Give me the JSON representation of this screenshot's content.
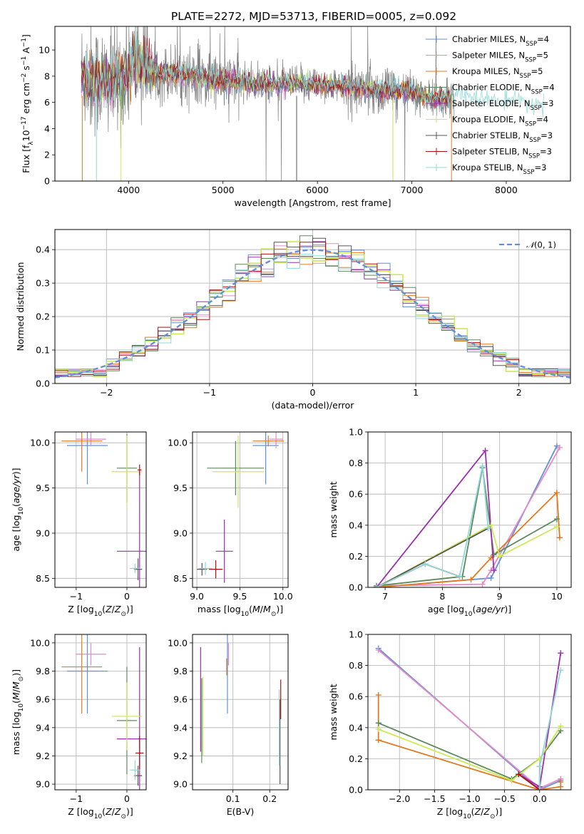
{
  "title": "PLATE=2272, MJD=53713, FIBERID=0005, z=0.092",
  "colors": {
    "Chabrier MILES": "#6190d8",
    "Salpeter MILES": "#e58ac6",
    "Kroupa MILES": "#e07a1f",
    "Chabrier ELODIE": "#5c8a5c",
    "Salpeter ELODIE": "#9a2fb0",
    "Kroupa ELODIE": "#cbe85a",
    "Chabrier STELIB": "#555555",
    "Salpeter STELIB": "#b01010",
    "Kroupa STELIB": "#8fd8d8",
    "data": "#7f7f7f"
  },
  "chart_data": [
    {
      "id": "spectrum",
      "type": "line",
      "xlabel": "wavelength [Angstrom, rest frame]",
      "ylabel": "Flux [f_λ 10^-17 erg cm^-2 s^-1 A^-1]",
      "xlim": [
        3220,
        8680
      ],
      "ylim": [
        0,
        11.8
      ],
      "xticks": [
        4000,
        5000,
        6000,
        7000,
        8000
      ],
      "yticks": [
        0,
        2,
        4,
        6,
        8,
        10
      ],
      "legend_position": "top-right",
      "legend": [
        {
          "model": "Chabrier MILES",
          "label": "Chabrier MILES, N",
          "sub": "SSP",
          "suffix": "=4"
        },
        {
          "model": "Salpeter MILES",
          "label": "Salpeter MILES, N",
          "sub": "SSP",
          "suffix": "=5"
        },
        {
          "model": "Kroupa MILES",
          "label": "Kroupa MILES, N",
          "sub": "SSP",
          "suffix": "=5"
        },
        {
          "model": "Chabrier ELODIE",
          "label": "Chabrier ELODIE, N",
          "sub": "SSP",
          "suffix": "=4"
        },
        {
          "model": "Salpeter ELODIE",
          "label": "Salpeter ELODIE, N",
          "sub": "SSP",
          "suffix": "=3"
        },
        {
          "model": "Kroupa ELODIE",
          "label": "Kroupa ELODIE, N",
          "sub": "SSP",
          "suffix": "=4"
        },
        {
          "model": "Chabrier STELIB",
          "label": "Chabrier STELIB, N",
          "sub": "SSP",
          "suffix": "=3"
        },
        {
          "model": "Salpeter STELIB",
          "label": "Salpeter STELIB, N",
          "sub": "SSP",
          "suffix": "=3"
        },
        {
          "model": "Kroupa STELIB",
          "label": "Kroupa STELIB, N",
          "sub": "SSP",
          "suffix": "=3"
        }
      ],
      "continuum_knots": [
        [
          3500,
          8.2
        ],
        [
          3700,
          7.6
        ],
        [
          3900,
          7.7
        ],
        [
          4100,
          9.2
        ],
        [
          4300,
          8.3
        ],
        [
          4600,
          8.1
        ],
        [
          5000,
          7.6
        ],
        [
          5500,
          7.4
        ],
        [
          6000,
          7.4
        ],
        [
          6500,
          7.0
        ],
        [
          7000,
          6.8
        ],
        [
          7200,
          6.2
        ],
        [
          7400,
          6.4
        ],
        [
          7600,
          6.2
        ],
        [
          8000,
          5.9
        ],
        [
          8400,
          5.6
        ]
      ]
    },
    {
      "id": "residuals",
      "type": "histogram",
      "xlabel": "(data-model)/error",
      "ylabel": "Normed distribution",
      "xlim": [
        -2.5,
        2.5
      ],
      "ylim": [
        0,
        0.46
      ],
      "xticks": [
        -2,
        -1,
        0,
        1,
        2
      ],
      "yticks": [
        0.0,
        0.1,
        0.2,
        0.3,
        0.4
      ],
      "grid": true,
      "legend_position": "top-right",
      "reference_label": "N(0,1)",
      "bins": 40
    },
    {
      "id": "z-age",
      "type": "errorbar",
      "xlabel": "Z [log10(Z/Z⊙)]",
      "ylabel": "age [log10(age/yr)]",
      "xlim": [
        -1.42,
        0.38
      ],
      "ylim": [
        8.4,
        10.12
      ],
      "xticks": [
        -1,
        0
      ],
      "yticks": [
        8.5,
        9.0,
        9.5,
        10.0
      ],
      "grid": true,
      "points": [
        {
          "model": "Chabrier MILES",
          "x": -0.78,
          "y": 9.97,
          "xerr": 0.4,
          "yerr": 0.43
        },
        {
          "model": "Salpeter MILES",
          "x": -0.71,
          "y": 10.04,
          "xerr": 0.3,
          "yerr": 0.08
        },
        {
          "model": "Kroupa MILES",
          "x": -0.89,
          "y": 10.02,
          "xerr": 0.4,
          "yerr": 0.34
        },
        {
          "model": "Chabrier ELODIE",
          "x": -0.0,
          "y": 9.72,
          "xerr": 0.2,
          "yerr": 0.38
        },
        {
          "model": "Salpeter ELODIE",
          "x": 0.25,
          "y": 8.8,
          "xerr": 0.45,
          "yerr": 0.9
        },
        {
          "model": "Kroupa ELODIE",
          "x": 0.0,
          "y": 9.68,
          "xerr": 0.3,
          "yerr": 0.4
        },
        {
          "model": "Chabrier STELIB",
          "x": 0.22,
          "y": 8.6,
          "xerr": 0.08,
          "yerr": 0.12
        },
        {
          "model": "Salpeter STELIB",
          "x": 0.25,
          "y": 9.7,
          "xerr": 0.04,
          "yerr": 0.06
        },
        {
          "model": "Kroupa STELIB",
          "x": 0.16,
          "y": 8.61,
          "xerr": 0.1,
          "yerr": 0.05
        }
      ]
    },
    {
      "id": "mass-age",
      "type": "errorbar",
      "xlabel": "mass [log10(M/M⊙)]",
      "ylabel": "",
      "xlim": [
        8.95,
        10.06
      ],
      "ylim": [
        8.4,
        10.12
      ],
      "xticks": [
        9.0,
        9.5,
        10.0
      ],
      "yticks": [
        8.5,
        9.0,
        9.5,
        10.0
      ],
      "grid": true,
      "points": [
        {
          "model": "Chabrier MILES",
          "x": 9.8,
          "y": 9.97,
          "xerr": 0.15,
          "yerr": 0.43
        },
        {
          "model": "Salpeter MILES",
          "x": 9.92,
          "y": 10.04,
          "xerr": 0.08,
          "yerr": 0.1
        },
        {
          "model": "Kroupa MILES",
          "x": 9.83,
          "y": 10.02,
          "xerr": 0.18,
          "yerr": 0.06
        },
        {
          "model": "Chabrier ELODIE",
          "x": 9.45,
          "y": 9.72,
          "xerr": 0.33,
          "yerr": 0.3
        },
        {
          "model": "Salpeter ELODIE",
          "x": 9.32,
          "y": 8.8,
          "xerr": 0.1,
          "yerr": 0.35
        },
        {
          "model": "Kroupa ELODIE",
          "x": 9.48,
          "y": 9.68,
          "xerr": 0.3,
          "yerr": 0.4
        },
        {
          "model": "Chabrier STELIB",
          "x": 9.06,
          "y": 8.6,
          "xerr": 0.06,
          "yerr": 0.07
        },
        {
          "model": "Salpeter STELIB",
          "x": 9.22,
          "y": 8.6,
          "xerr": 0.08,
          "yerr": 0.1
        },
        {
          "model": "Kroupa STELIB",
          "x": 9.1,
          "y": 8.61,
          "xerr": 0.08,
          "yerr": 0.07
        }
      ]
    },
    {
      "id": "age-weight",
      "type": "line",
      "xlabel": "age [log10(age/yr)]",
      "ylabel": "mass weight",
      "xlim": [
        6.7,
        10.25
      ],
      "ylim": [
        0,
        1.0
      ],
      "xticks": [
        7,
        8,
        9,
        10
      ],
      "yticks": [
        0.0,
        0.2,
        0.4,
        0.6,
        0.8,
        1.0
      ],
      "grid": true,
      "series": [
        {
          "model": "Chabrier MILES",
          "x": [
            6.85,
            8.85,
            10.0
          ],
          "y": [
            0.0,
            0.06,
            0.91
          ]
        },
        {
          "model": "Salpeter MILES",
          "x": [
            6.85,
            8.7,
            8.85,
            10.05
          ],
          "y": [
            0.01,
            0.02,
            0.11,
            0.9
          ]
        },
        {
          "model": "Kroupa MILES",
          "x": [
            6.85,
            8.5,
            8.85,
            10.0,
            10.05
          ],
          "y": [
            0.0,
            0.05,
            0.19,
            0.61,
            0.32
          ]
        },
        {
          "model": "Chabrier ELODIE",
          "x": [
            6.85,
            8.35,
            8.7,
            8.9,
            10.0
          ],
          "y": [
            0.01,
            0.07,
            0.77,
            0.21,
            0.44
          ]
        },
        {
          "model": "Salpeter ELODIE",
          "x": [
            6.85,
            8.75,
            8.9
          ],
          "y": [
            0.0,
            0.88,
            0.11
          ]
        },
        {
          "model": "Kroupa ELODIE",
          "x": [
            6.85,
            8.85,
            9.0,
            10.0
          ],
          "y": [
            0.0,
            0.4,
            0.2,
            0.39
          ]
        },
        {
          "model": "Chabrier STELIB",
          "x": [
            6.85,
            8.8
          ],
          "y": [
            0.0,
            0.38
          ]
        },
        {
          "model": "Salpeter STELIB",
          "x": [
            6.85,
            7.7,
            8.3
          ],
          "y": [
            0.0,
            0.15,
            0.07
          ]
        },
        {
          "model": "Kroupa STELIB",
          "x": [
            6.85,
            7.7,
            8.3,
            8.7,
            8.8
          ],
          "y": [
            0.0,
            0.15,
            0.07,
            0.78,
            0.38
          ]
        }
      ]
    },
    {
      "id": "z-mass",
      "type": "errorbar",
      "xlabel": "Z [log10(Z/Z⊙)]",
      "ylabel": "mass [log10(M/M⊙)]",
      "xlim": [
        -1.42,
        0.38
      ],
      "ylim": [
        8.96,
        10.06
      ],
      "xticks": [
        -1,
        0
      ],
      "yticks": [
        9.0,
        9.2,
        9.4,
        9.6,
        9.8,
        10.0
      ],
      "grid": true,
      "points": [
        {
          "model": "Chabrier MILES",
          "x": -0.78,
          "y": 9.8,
          "xerr": 0.4,
          "yerr": 0.3
        },
        {
          "model": "Salpeter MILES",
          "x": -0.71,
          "y": 9.92,
          "xerr": 0.3,
          "yerr": 0.08
        },
        {
          "model": "Kroupa MILES",
          "x": -0.89,
          "y": 9.83,
          "xerr": 0.4,
          "yerr": 0.33
        },
        {
          "model": "Chabrier ELODIE",
          "x": -0.0,
          "y": 9.45,
          "xerr": 0.2,
          "yerr": 0.38
        },
        {
          "model": "Salpeter ELODIE",
          "x": 0.25,
          "y": 9.32,
          "xerr": 0.45,
          "yerr": 0.65
        },
        {
          "model": "Kroupa ELODIE",
          "x": 0.0,
          "y": 9.48,
          "xerr": 0.3,
          "yerr": 0.24
        },
        {
          "model": "Chabrier STELIB",
          "x": 0.22,
          "y": 9.06,
          "xerr": 0.08,
          "yerr": 0.07
        },
        {
          "model": "Salpeter STELIB",
          "x": 0.25,
          "y": 9.22,
          "xerr": 0.08,
          "yerr": 0.12
        },
        {
          "model": "Kroupa STELIB",
          "x": 0.16,
          "y": 9.1,
          "xerr": 0.1,
          "yerr": 0.07
        }
      ]
    },
    {
      "id": "ebv-mass",
      "type": "errorbar",
      "xlabel": "E(B-V)",
      "ylabel": "",
      "xlim": [
        -0.01,
        0.25
      ],
      "ylim": [
        8.96,
        10.06
      ],
      "xticks": [
        0.1,
        0.2
      ],
      "yticks": [
        9.0,
        9.2,
        9.4,
        9.6,
        9.8,
        10.0
      ],
      "grid": true,
      "points": [
        {
          "model": "Chabrier MILES",
          "x": 0.085,
          "y": 9.8,
          "xerr": 0.0,
          "yerr": 0.3
        },
        {
          "model": "Salpeter MILES",
          "x": 0.088,
          "y": 9.92,
          "xerr": 0.0,
          "yerr": 0.08
        },
        {
          "model": "Kroupa MILES",
          "x": 0.083,
          "y": 9.83,
          "xerr": 0.0,
          "yerr": 0.06
        },
        {
          "model": "Chabrier ELODIE",
          "x": 0.015,
          "y": 9.45,
          "xerr": 0.0,
          "yerr": 0.3
        },
        {
          "model": "Salpeter ELODIE",
          "x": 0.012,
          "y": 9.6,
          "xerr": 0.0,
          "yerr": 0.37
        },
        {
          "model": "Kroupa ELODIE",
          "x": 0.018,
          "y": 9.48,
          "xerr": 0.0,
          "yerr": 0.28
        },
        {
          "model": "Chabrier STELIB",
          "x": 0.228,
          "y": 9.3,
          "xerr": 0.0,
          "yerr": 0.3
        },
        {
          "model": "Salpeter STELIB",
          "x": 0.23,
          "y": 9.6,
          "xerr": 0.0,
          "yerr": 0.14
        },
        {
          "model": "Kroupa STELIB",
          "x": 0.226,
          "y": 9.4,
          "xerr": 0.0,
          "yerr": 0.27
        }
      ]
    },
    {
      "id": "z-weight",
      "type": "line",
      "xlabel": "Z [log10(Z/Z⊙)]",
      "ylabel": "mass weight",
      "xlim": [
        -2.45,
        0.45
      ],
      "ylim": [
        0,
        1.0
      ],
      "xticks": [
        -2.0,
        -1.5,
        -1.0,
        -0.5,
        0.0
      ],
      "yticks": [
        0.0,
        0.2,
        0.4,
        0.6,
        0.8,
        1.0
      ],
      "grid": true,
      "series": [
        {
          "model": "Chabrier MILES",
          "x": [
            -2.3,
            0.0,
            0.3
          ],
          "y": [
            0.91,
            0.0,
            0.06
          ]
        },
        {
          "model": "Salpeter MILES",
          "x": [
            -2.3,
            0.0,
            0.3
          ],
          "y": [
            0.9,
            0.01,
            0.07
          ]
        },
        {
          "model": "Kroupa MILES",
          "x": [
            -2.3,
            -2.3,
            -2.3,
            0.0,
            0.3,
            0.3
          ],
          "y": [
            0.61,
            0.32,
            0.32,
            0.0,
            0.02,
            0.05
          ]
        },
        {
          "model": "Chabrier ELODIE",
          "x": [
            -2.3,
            -0.4,
            0.0,
            0.3
          ],
          "y": [
            0.43,
            0.07,
            0.2,
            0.38
          ]
        },
        {
          "model": "Salpeter ELODIE",
          "x": [
            -0.3,
            0.0,
            0.3
          ],
          "y": [
            0.1,
            0.02,
            0.88
          ]
        },
        {
          "model": "Kroupa ELODIE",
          "x": [
            -2.3,
            -0.4,
            0.0,
            0.3
          ],
          "y": [
            0.39,
            0.06,
            0.2,
            0.41
          ]
        },
        {
          "model": "Chabrier STELIB",
          "x": [
            0.0,
            0.0
          ],
          "y": [
            0.0,
            0.15
          ]
        },
        {
          "model": "Salpeter STELIB",
          "x": [
            -0.3,
            0.0
          ],
          "y": [
            0.1,
            0.0
          ]
        },
        {
          "model": "Kroupa STELIB",
          "x": [
            0.0,
            0.0,
            0.3
          ],
          "y": [
            0.0,
            0.15,
            0.77
          ]
        }
      ]
    }
  ]
}
